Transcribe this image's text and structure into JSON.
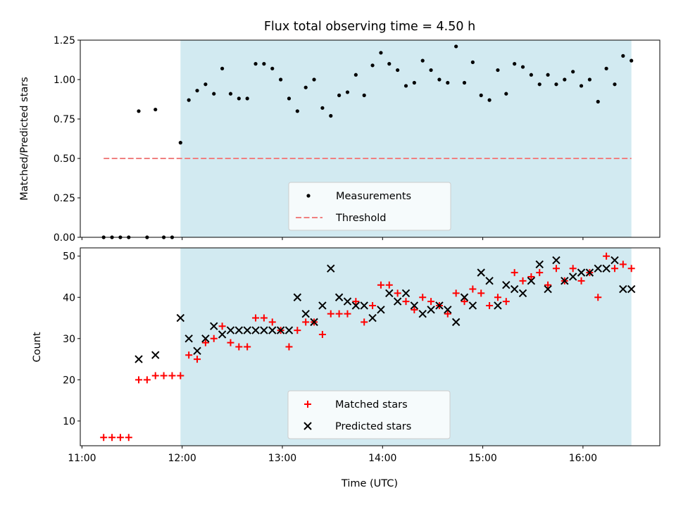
{
  "chart_data": [
    {
      "type": "scatter",
      "title": "Flux total observing time = 4.50 h",
      "ylabel": "Matched/Predicted stars",
      "xlim": [
        "11:00",
        "16:45"
      ],
      "ylim": [
        0,
        1.25
      ],
      "yticks": [
        "0.00",
        "0.25",
        "0.50",
        "0.75",
        "1.00",
        "1.25"
      ],
      "shaded_span": [
        "11:59",
        "16:29"
      ],
      "shade_color": "#add8e6",
      "threshold": {
        "name": "Threshold",
        "value": 0.5,
        "x_range": [
          "11:13",
          "16:29"
        ],
        "color": "#f08080"
      },
      "legend_position": "lower center",
      "series": [
        {
          "name": "Measurements",
          "color": "#000000",
          "marker": "dot",
          "points": [
            [
              "11:13",
              0.0
            ],
            [
              "11:18",
              0.0
            ],
            [
              "11:23",
              0.0
            ],
            [
              "11:28",
              0.0
            ],
            [
              "11:39",
              0.0
            ],
            [
              "11:49",
              0.0
            ],
            [
              "11:54",
              0.0
            ],
            [
              "11:34",
              0.8
            ],
            [
              "11:44",
              0.81
            ],
            [
              "11:59",
              0.6
            ],
            [
              "12:04",
              0.87
            ],
            [
              "12:09",
              0.93
            ],
            [
              "12:14",
              0.97
            ],
            [
              "12:19",
              0.91
            ],
            [
              "12:24",
              1.07
            ],
            [
              "12:29",
              0.91
            ],
            [
              "12:34",
              0.88
            ],
            [
              "12:39",
              0.88
            ],
            [
              "12:44",
              1.1
            ],
            [
              "12:49",
              1.1
            ],
            [
              "12:54",
              1.07
            ],
            [
              "12:59",
              1.0
            ],
            [
              "13:04",
              0.88
            ],
            [
              "13:09",
              0.8
            ],
            [
              "13:14",
              0.95
            ],
            [
              "13:19",
              1.0
            ],
            [
              "13:24",
              0.82
            ],
            [
              "13:29",
              0.77
            ],
            [
              "13:34",
              0.9
            ],
            [
              "13:39",
              0.92
            ],
            [
              "13:44",
              1.03
            ],
            [
              "13:49",
              0.9
            ],
            [
              "13:54",
              1.09
            ],
            [
              "13:59",
              1.17
            ],
            [
              "14:04",
              1.1
            ],
            [
              "14:09",
              1.06
            ],
            [
              "14:14",
              0.96
            ],
            [
              "14:19",
              0.98
            ],
            [
              "14:24",
              1.12
            ],
            [
              "14:29",
              1.06
            ],
            [
              "14:34",
              1.0
            ],
            [
              "14:39",
              0.98
            ],
            [
              "14:44",
              1.21
            ],
            [
              "14:49",
              0.98
            ],
            [
              "14:54",
              1.11
            ],
            [
              "14:59",
              0.9
            ],
            [
              "15:04",
              0.87
            ],
            [
              "15:09",
              1.06
            ],
            [
              "15:14",
              0.91
            ],
            [
              "15:19",
              1.1
            ],
            [
              "15:24",
              1.08
            ],
            [
              "15:29",
              1.03
            ],
            [
              "15:34",
              0.97
            ],
            [
              "15:39",
              1.03
            ],
            [
              "15:44",
              0.97
            ],
            [
              "15:49",
              1.0
            ],
            [
              "15:54",
              1.05
            ],
            [
              "15:59",
              0.96
            ],
            [
              "16:04",
              1.0
            ],
            [
              "16:09",
              0.86
            ],
            [
              "16:14",
              1.07
            ],
            [
              "16:19",
              0.97
            ],
            [
              "16:24",
              1.15
            ],
            [
              "16:29",
              1.12
            ]
          ]
        }
      ]
    },
    {
      "type": "scatter",
      "xlabel": "Time (UTC)",
      "ylabel": "Count",
      "xlim": [
        "11:00",
        "16:45"
      ],
      "xticks": [
        "11:00",
        "12:00",
        "13:00",
        "14:00",
        "15:00",
        "16:00"
      ],
      "ylim": [
        4,
        52
      ],
      "yticks": [
        "10",
        "20",
        "30",
        "40",
        "50"
      ],
      "shaded_span": [
        "11:59",
        "16:29"
      ],
      "shade_color": "#add8e6",
      "legend_position": "lower center",
      "series": [
        {
          "name": "Matched stars",
          "color": "#ff0000",
          "marker": "plus",
          "points": [
            [
              "11:13",
              6
            ],
            [
              "11:18",
              6
            ],
            [
              "11:23",
              6
            ],
            [
              "11:28",
              6
            ],
            [
              "11:34",
              20
            ],
            [
              "11:39",
              20
            ],
            [
              "11:44",
              21
            ],
            [
              "11:49",
              21
            ],
            [
              "11:54",
              21
            ],
            [
              "11:59",
              21
            ],
            [
              "12:04",
              26
            ],
            [
              "12:09",
              25
            ],
            [
              "12:14",
              29
            ],
            [
              "12:19",
              30
            ],
            [
              "12:24",
              33
            ],
            [
              "12:29",
              29
            ],
            [
              "12:34",
              28
            ],
            [
              "12:39",
              28
            ],
            [
              "12:44",
              35
            ],
            [
              "12:49",
              35
            ],
            [
              "12:54",
              34
            ],
            [
              "12:59",
              32
            ],
            [
              "13:04",
              28
            ],
            [
              "13:09",
              32
            ],
            [
              "13:14",
              34
            ],
            [
              "13:19",
              34
            ],
            [
              "13:24",
              31
            ],
            [
              "13:29",
              36
            ],
            [
              "13:34",
              36
            ],
            [
              "13:39",
              36
            ],
            [
              "13:44",
              39
            ],
            [
              "13:49",
              34
            ],
            [
              "13:54",
              38
            ],
            [
              "13:59",
              43
            ],
            [
              "14:04",
              43
            ],
            [
              "14:09",
              41
            ],
            [
              "14:14",
              39
            ],
            [
              "14:19",
              37
            ],
            [
              "14:24",
              40
            ],
            [
              "14:29",
              39
            ],
            [
              "14:34",
              38
            ],
            [
              "14:39",
              36
            ],
            [
              "14:44",
              41
            ],
            [
              "14:49",
              39
            ],
            [
              "14:54",
              42
            ],
            [
              "14:59",
              41
            ],
            [
              "15:04",
              38
            ],
            [
              "15:09",
              40
            ],
            [
              "15:14",
              39
            ],
            [
              "15:19",
              46
            ],
            [
              "15:24",
              44
            ],
            [
              "15:29",
              45
            ],
            [
              "15:34",
              46
            ],
            [
              "15:39",
              43
            ],
            [
              "15:44",
              47
            ],
            [
              "15:49",
              44
            ],
            [
              "15:54",
              47
            ],
            [
              "15:59",
              44
            ],
            [
              "16:04",
              46
            ],
            [
              "16:09",
              40
            ],
            [
              "16:14",
              50
            ],
            [
              "16:19",
              47
            ],
            [
              "16:24",
              48
            ],
            [
              "16:29",
              47
            ]
          ]
        },
        {
          "name": "Predicted stars",
          "color": "#000000",
          "marker": "x",
          "points": [
            [
              "11:34",
              25
            ],
            [
              "11:44",
              26
            ],
            [
              "11:59",
              35
            ],
            [
              "12:04",
              30
            ],
            [
              "12:09",
              27
            ],
            [
              "12:14",
              30
            ],
            [
              "12:19",
              33
            ],
            [
              "12:24",
              31
            ],
            [
              "12:29",
              32
            ],
            [
              "12:34",
              32
            ],
            [
              "12:39",
              32
            ],
            [
              "12:44",
              32
            ],
            [
              "12:49",
              32
            ],
            [
              "12:54",
              32
            ],
            [
              "12:59",
              32
            ],
            [
              "13:04",
              32
            ],
            [
              "13:09",
              40
            ],
            [
              "13:14",
              36
            ],
            [
              "13:19",
              34
            ],
            [
              "13:24",
              38
            ],
            [
              "13:29",
              47
            ],
            [
              "13:34",
              40
            ],
            [
              "13:39",
              39
            ],
            [
              "13:44",
              38
            ],
            [
              "13:49",
              38
            ],
            [
              "13:54",
              35
            ],
            [
              "13:59",
              37
            ],
            [
              "14:04",
              41
            ],
            [
              "14:09",
              39
            ],
            [
              "14:14",
              41
            ],
            [
              "14:19",
              38
            ],
            [
              "14:24",
              36
            ],
            [
              "14:29",
              37
            ],
            [
              "14:34",
              38
            ],
            [
              "14:39",
              37
            ],
            [
              "14:44",
              34
            ],
            [
              "14:49",
              40
            ],
            [
              "14:54",
              38
            ],
            [
              "14:59",
              46
            ],
            [
              "15:04",
              44
            ],
            [
              "15:09",
              38
            ],
            [
              "15:14",
              43
            ],
            [
              "15:19",
              42
            ],
            [
              "15:24",
              41
            ],
            [
              "15:29",
              44
            ],
            [
              "15:34",
              48
            ],
            [
              "15:39",
              42
            ],
            [
              "15:44",
              49
            ],
            [
              "15:49",
              44
            ],
            [
              "15:54",
              45
            ],
            [
              "15:59",
              46
            ],
            [
              "16:04",
              46
            ],
            [
              "16:09",
              47
            ],
            [
              "16:14",
              47
            ],
            [
              "16:19",
              49
            ],
            [
              "16:24",
              42
            ],
            [
              "16:29",
              42
            ]
          ]
        }
      ]
    }
  ]
}
